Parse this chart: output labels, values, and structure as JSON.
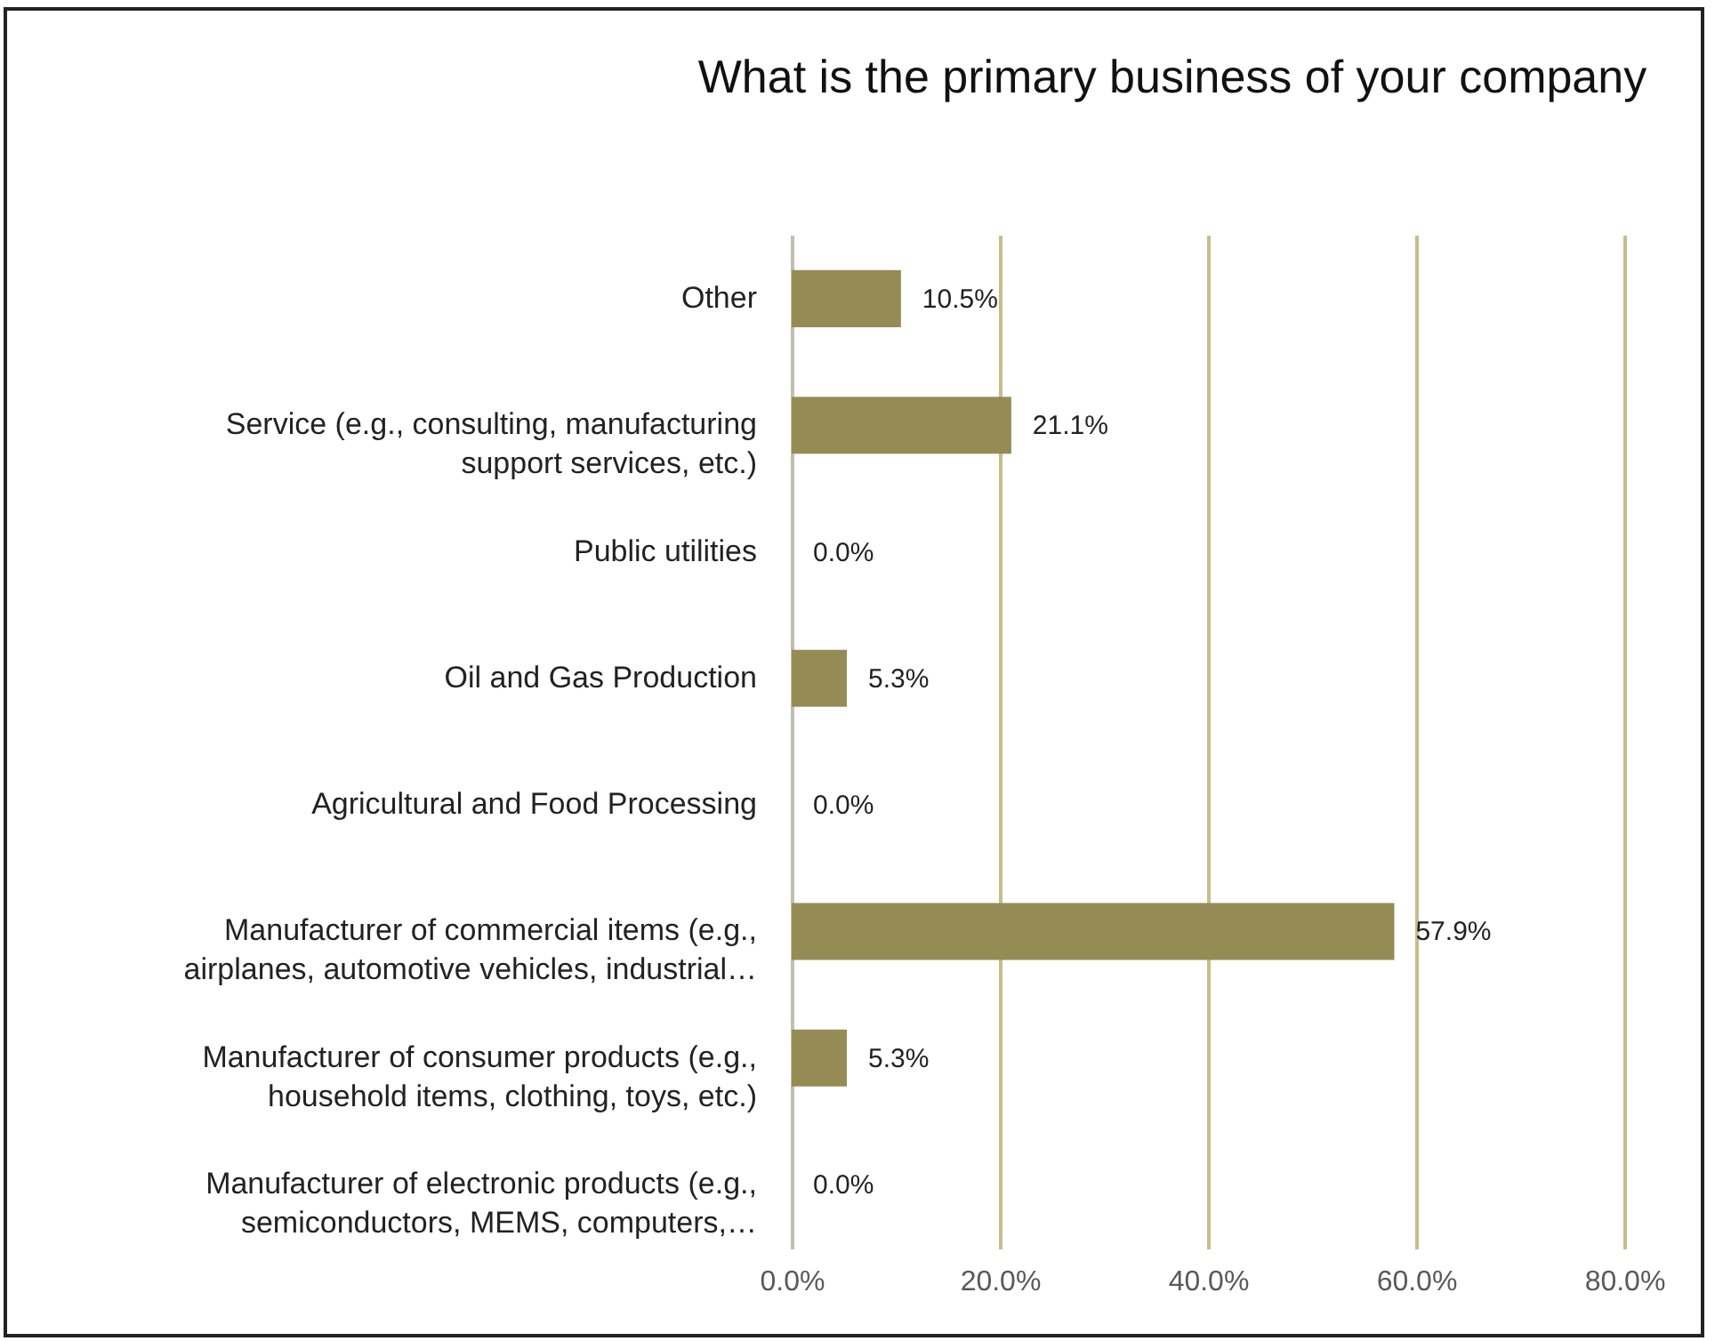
{
  "chart_data": {
    "type": "bar",
    "orientation": "horizontal",
    "title": "What is the primary business of your company",
    "categories": [
      "Other",
      "Service (e.g., consulting, manufacturing support services, etc.)",
      "Public utilities",
      "Oil and Gas Production",
      "Agricultural and Food Processing",
      "Manufacturer of commercial items (e.g., airplanes, automotive vehicles, industrial…",
      "Manufacturer of consumer products (e.g., household items, clothing, toys, etc.)",
      "Manufacturer of electronic products (e.g., semiconductors, MEMS, computers,…"
    ],
    "values": [
      10.5,
      21.1,
      0,
      5.3,
      0,
      57.9,
      5.3,
      0
    ],
    "value_labels": [
      "10.5%",
      "21.1%",
      "0.0%",
      "5.3%",
      "0.0%",
      "57.9%",
      "5.3%",
      "0.0%"
    ],
    "color": "#958b55",
    "xlim": [
      0,
      80
    ],
    "xticks": [
      {
        "value": 0,
        "label": "0.0%"
      },
      {
        "value": 20,
        "label": "20.0%"
      },
      {
        "value": 40,
        "label": "40.0%"
      },
      {
        "value": 60,
        "label": "60.0%"
      },
      {
        "value": 80,
        "label": "80.0%"
      }
    ],
    "grid": "x"
  }
}
